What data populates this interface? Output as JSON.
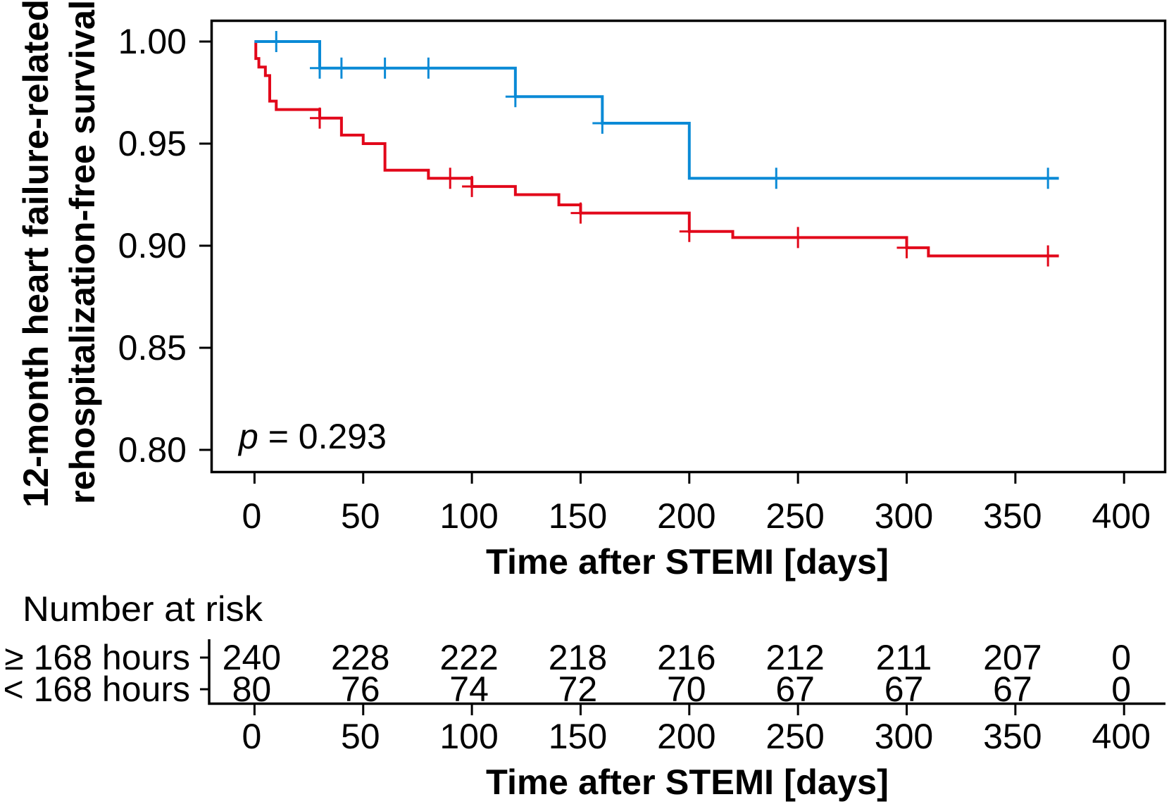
{
  "chart_data": {
    "type": "line",
    "subtype": "kaplan-meier-step",
    "xlabel": "Time after STEMI [days]",
    "ylabel_lines": [
      "12-month heart failure-related",
      "rehospitalization-free survival"
    ],
    "xlim": [
      0,
      400
    ],
    "ylim": [
      0.8,
      1.0
    ],
    "x_ticks": [
      "0",
      "50",
      "100",
      "150",
      "200",
      "250",
      "300",
      "350",
      "400"
    ],
    "x_tick_values": [
      0,
      50,
      100,
      150,
      200,
      250,
      300,
      350,
      400
    ],
    "y_ticks": [
      "1.00",
      "0.95",
      "0.90",
      "0.85",
      "0.80"
    ],
    "y_tick_values": [
      1.0,
      0.95,
      0.9,
      0.85,
      0.8
    ],
    "grid": false,
    "annotation": {
      "p_symbol": "p",
      "p_rest": " = 0.293"
    },
    "series": [
      {
        "name": "≥ 168 hours",
        "color": "#e2071a",
        "label_color": "#d0101a",
        "start": 1.0,
        "steps": [
          [
            0.6,
            0.9917
          ],
          [
            2,
            0.9875
          ],
          [
            5,
            0.9833
          ],
          [
            7,
            0.9708
          ],
          [
            10,
            0.9667
          ],
          [
            30,
            0.9625
          ],
          [
            40,
            0.9542
          ],
          [
            50,
            0.95
          ],
          [
            60,
            0.937
          ],
          [
            80,
            0.933
          ],
          [
            100,
            0.929
          ],
          [
            120,
            0.925
          ],
          [
            140,
            0.92
          ],
          [
            150,
            0.916
          ],
          [
            200,
            0.907
          ],
          [
            220,
            0.904
          ],
          [
            300,
            0.899
          ],
          [
            310,
            0.895
          ]
        ],
        "censored": [
          30,
          90,
          100,
          150,
          200,
          250,
          300,
          365
        ],
        "at_risk": [
          "240",
          "228",
          "222",
          "218",
          "216",
          "212",
          "211",
          "207",
          "0"
        ]
      },
      {
        "name": "< 168 hours",
        "color": "#0a8ad6",
        "label_color": "#18a0e0",
        "start": 1.0,
        "steps": [
          [
            30,
            0.987
          ],
          [
            120,
            0.973
          ],
          [
            160,
            0.96
          ],
          [
            200,
            0.933
          ]
        ],
        "censored": [
          10,
          30,
          40,
          60,
          80,
          120,
          160,
          240,
          365
        ],
        "at_risk": [
          "80",
          "76",
          "74",
          "72",
          "70",
          "67",
          "67",
          "67",
          "0"
        ]
      }
    ],
    "risk_table": {
      "title": "Number at risk",
      "times": [
        0,
        50,
        100,
        150,
        200,
        250,
        300,
        350,
        400
      ],
      "xlabel": "Time after STEMI [days]"
    }
  }
}
